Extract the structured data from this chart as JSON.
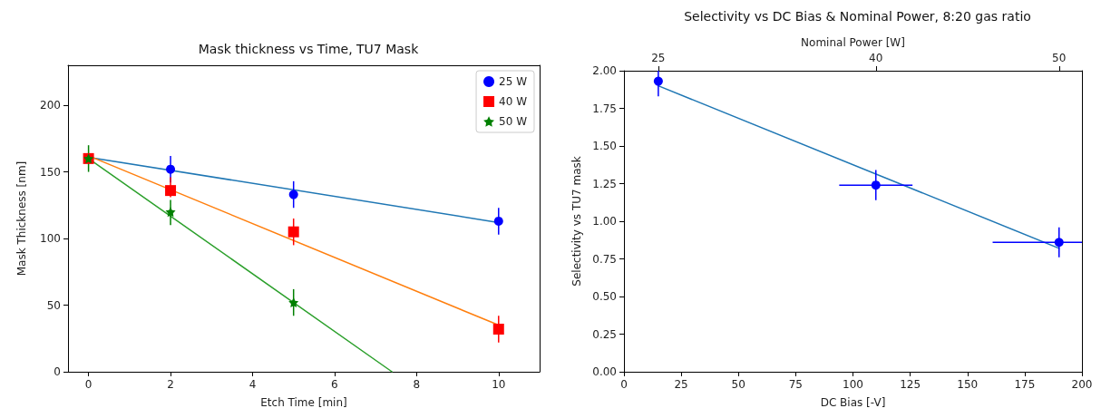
{
  "chart_data": [
    {
      "type": "scatter",
      "title": "Mask thickness vs Time, TU7 Mask",
      "xlabel": "Etch Time [min]",
      "ylabel": "Mask Thickness [nm]",
      "xlim": [
        -0.5,
        11
      ],
      "ylim": [
        0,
        230
      ],
      "xticks": [
        0,
        2,
        4,
        6,
        8,
        10
      ],
      "yticks": [
        0,
        50,
        100,
        150,
        200
      ],
      "legend": "top right",
      "series": [
        {
          "name": "25 W",
          "color": "#0000ff",
          "marker": "circle",
          "x": [
            2,
            5,
            10
          ],
          "values": [
            152,
            133,
            113
          ],
          "errors": [
            10,
            10,
            10
          ]
        },
        {
          "name": "40 W",
          "color": "#ff0000",
          "marker": "square",
          "x": [
            0,
            2,
            5,
            10
          ],
          "values": [
            160,
            136,
            105,
            32
          ],
          "errors": [
            null,
            [
              131,
              146
            ],
            10,
            10
          ]
        },
        {
          "name": "50 W",
          "color": "#008000",
          "marker": "star",
          "x": [
            0,
            2,
            5
          ],
          "values": [
            160,
            120,
            52
          ],
          "errors": [
            10,
            [
              110,
              129
            ],
            10
          ]
        },
        {
          "type": "line",
          "color": "#1f77b4",
          "marker": "none",
          "x": [
            0,
            10
          ],
          "values": [
            161,
            112
          ]
        },
        {
          "type": "line",
          "color": "#ff7f0e",
          "marker": "none",
          "x": [
            0,
            10
          ],
          "values": [
            162,
            35
          ]
        },
        {
          "type": "line",
          "color": "#2ca02c",
          "marker": "none",
          "x": [
            0,
            7.4
          ],
          "values": [
            160,
            0
          ]
        }
      ]
    },
    {
      "type": "scatter",
      "title": "Selectivity vs DC Bias & Nominal Power, 8:20 gas ratio",
      "xlabel": "DC Bias [-V]",
      "ylabel": "Selectivity vs TU7 mask",
      "x2label": "Nominal Power [W]",
      "xlim": [
        0,
        200
      ],
      "ylim": [
        0,
        2
      ],
      "xticks": [
        0,
        25,
        50,
        75,
        100,
        125,
        150,
        175,
        200
      ],
      "yticks": [
        {
          "value": 0,
          "label": "0.00"
        },
        {
          "value": 0.25,
          "label": "0.25"
        },
        {
          "value": 0.5,
          "label": "0.50"
        },
        {
          "value": 0.75,
          "label": "0.75"
        },
        {
          "value": 1,
          "label": "1.00"
        },
        {
          "value": 1.25,
          "label": "1.25"
        },
        {
          "value": 1.5,
          "label": "1.50"
        },
        {
          "value": 1.75,
          "label": "1.75"
        },
        {
          "value": 2,
          "label": "2.00"
        }
      ],
      "annotations": [
        {
          "text": "25",
          "x": 15
        },
        {
          "text": "40",
          "x": 110
        },
        {
          "text": "50",
          "x": 190
        }
      ],
      "series": [
        {
          "color": "#0000ff",
          "marker": "circle",
          "x": [
            15,
            110,
            190
          ],
          "values": [
            1.93,
            1.24,
            0.86
          ],
          "errors": [
            [
              1.83,
              2.0
            ],
            0.1,
            0.1
          ],
          "xerrors": [
            null,
            16,
            [
              161,
              200
            ]
          ]
        },
        {
          "type": "line",
          "color": "#1f77b4",
          "marker": "none",
          "x": [
            15,
            190
          ],
          "values": [
            1.9,
            0.82
          ]
        }
      ]
    }
  ]
}
